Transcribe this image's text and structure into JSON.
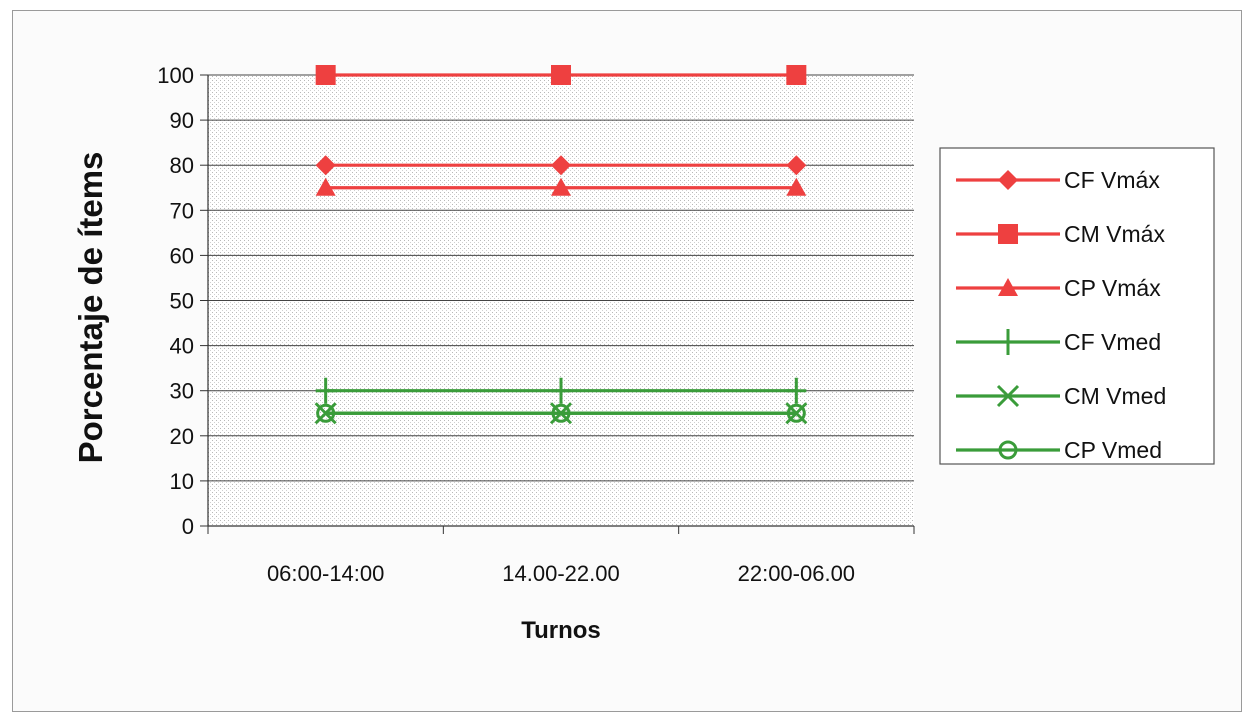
{
  "chart_data": {
    "type": "line",
    "title": "",
    "xlabel": "Turnos",
    "ylabel": "Porcentaje de ítems",
    "categories": [
      "06:00-14:00",
      "14.00-22.00",
      "22:00-06.00"
    ],
    "ylim": [
      0,
      100
    ],
    "yticks": [
      0,
      10,
      20,
      30,
      40,
      50,
      60,
      70,
      80,
      90,
      100
    ],
    "grid": true,
    "legend_position": "right",
    "series": [
      {
        "name": "CF Vmáx",
        "values": [
          80,
          80,
          80
        ],
        "color": "#ee4040",
        "marker": "diamond"
      },
      {
        "name": "CM Vmáx",
        "values": [
          100,
          100,
          100
        ],
        "color": "#ee4040",
        "marker": "square"
      },
      {
        "name": "CP Vmáx",
        "values": [
          75,
          75,
          75
        ],
        "color": "#ee4040",
        "marker": "triangle"
      },
      {
        "name": "CF Vmed",
        "values": [
          30,
          30,
          30
        ],
        "color": "#3a9c3a",
        "marker": "plus"
      },
      {
        "name": "CM Vmed",
        "values": [
          25,
          25,
          25
        ],
        "color": "#3a9c3a",
        "marker": "x"
      },
      {
        "name": "CP Vmed",
        "values": [
          25,
          25,
          25
        ],
        "color": "#3a9c3a",
        "marker": "circle"
      }
    ]
  }
}
